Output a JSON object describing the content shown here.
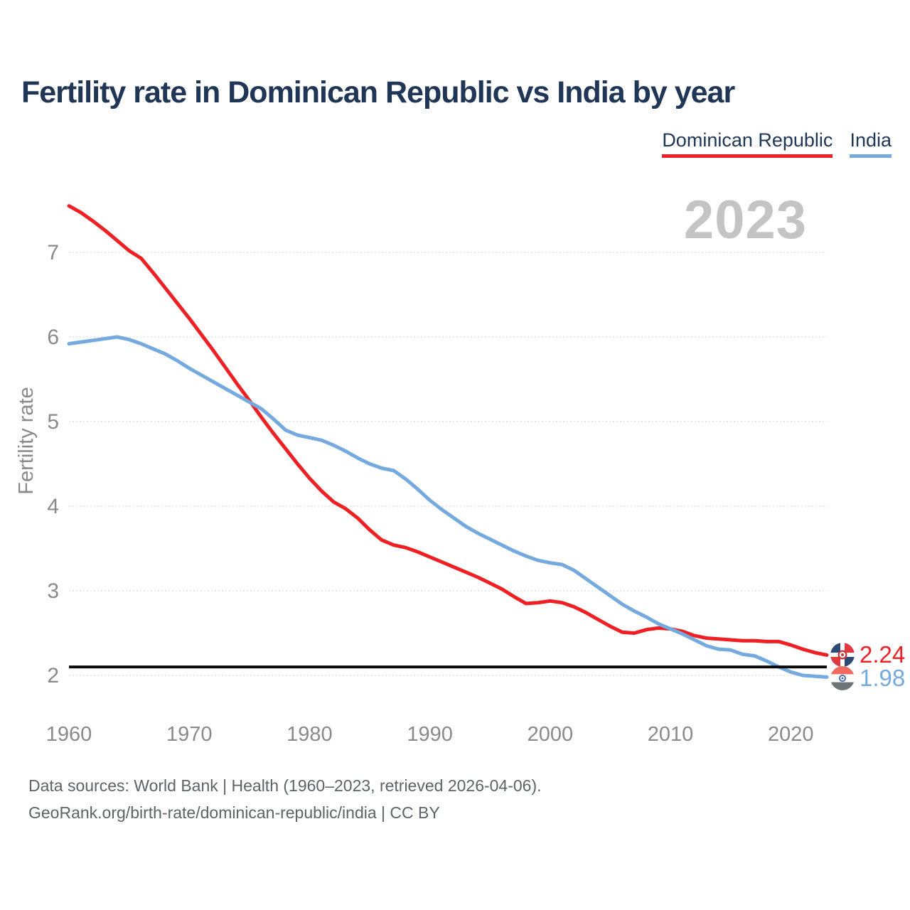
{
  "title": "Fertility rate in Dominican Republic vs India by year",
  "year_badge": "2023",
  "legend": {
    "items": [
      {
        "label": "Dominican Republic",
        "color": "#ef2024"
      },
      {
        "label": "India",
        "color": "#74aadf"
      }
    ]
  },
  "axis": {
    "y_label": "Fertility rate",
    "y_ticks": [
      2,
      3,
      4,
      5,
      6,
      7
    ],
    "x_ticks": [
      1960,
      1970,
      1980,
      1990,
      2000,
      2010,
      2020
    ]
  },
  "reference_line": {
    "value": 2.1
  },
  "end_labels": [
    {
      "series": "Dominican Republic",
      "value": "2.24",
      "icon": "dominican-republic-flag-icon"
    },
    {
      "series": "India",
      "value": "1.98",
      "icon": "india-flag-icon"
    }
  ],
  "footer": {
    "line1": "Data sources: World Bank | Health (1960–2023, retrieved 2026-04-06).",
    "line2": "GeoRank.org/birth-rate/dominican-republic/india | CC BY"
  },
  "colors": {
    "title_navy": "#203657",
    "tick_gray": "#8a8a8a",
    "badge_gray": "#c4c4c4",
    "grid": "#e3e3e3",
    "footer_gray": "#5d6367",
    "reference_black": "#0a0a0a",
    "series_red": "#ef2024",
    "series_blue": "#74aadf"
  },
  "chart_data": {
    "type": "line",
    "title": "Fertility rate in Dominican Republic vs India by year",
    "xlabel": "",
    "ylabel": "Fertility rate",
    "grid": "horizontal-dashed",
    "legend_position": "top-right",
    "xlim": [
      1960,
      2023
    ],
    "ylim": [
      1.8,
      7.8
    ],
    "reference_line": 2.1,
    "years": [
      1960,
      1961,
      1962,
      1963,
      1964,
      1965,
      1966,
      1967,
      1968,
      1969,
      1970,
      1971,
      1972,
      1973,
      1974,
      1975,
      1976,
      1977,
      1978,
      1979,
      1980,
      1981,
      1982,
      1983,
      1984,
      1985,
      1986,
      1987,
      1988,
      1989,
      1990,
      1991,
      1992,
      1993,
      1994,
      1995,
      1996,
      1997,
      1998,
      1999,
      2000,
      2001,
      2002,
      2003,
      2004,
      2005,
      2006,
      2007,
      2008,
      2009,
      2010,
      2011,
      2012,
      2013,
      2014,
      2015,
      2016,
      2017,
      2018,
      2019,
      2020,
      2021,
      2022,
      2023
    ],
    "series": [
      {
        "name": "Dominican Republic",
        "color": "#ef2024",
        "end_value": 2.24,
        "values": [
          7.55,
          7.47,
          7.37,
          7.26,
          7.14,
          7.02,
          6.93,
          6.76,
          6.58,
          6.4,
          6.22,
          6.03,
          5.84,
          5.64,
          5.44,
          5.25,
          5.05,
          4.86,
          4.68,
          4.5,
          4.33,
          4.18,
          4.05,
          3.97,
          3.86,
          3.72,
          3.6,
          3.54,
          3.51,
          3.46,
          3.4,
          3.34,
          3.28,
          3.22,
          3.16,
          3.09,
          3.02,
          2.93,
          2.85,
          2.86,
          2.88,
          2.86,
          2.81,
          2.74,
          2.66,
          2.58,
          2.51,
          2.5,
          2.54,
          2.56,
          2.55,
          2.52,
          2.47,
          2.44,
          2.43,
          2.42,
          2.41,
          2.41,
          2.4,
          2.4,
          2.36,
          2.31,
          2.27,
          2.24
        ]
      },
      {
        "name": "India",
        "color": "#74aadf",
        "end_value": 1.98,
        "values": [
          5.92,
          5.94,
          5.96,
          5.98,
          6.0,
          5.97,
          5.92,
          5.86,
          5.8,
          5.72,
          5.63,
          5.55,
          5.47,
          5.39,
          5.31,
          5.23,
          5.15,
          5.03,
          4.9,
          4.84,
          4.81,
          4.78,
          4.72,
          4.65,
          4.57,
          4.5,
          4.45,
          4.42,
          4.32,
          4.2,
          4.07,
          3.96,
          3.86,
          3.76,
          3.68,
          3.61,
          3.54,
          3.47,
          3.41,
          3.36,
          3.33,
          3.31,
          3.24,
          3.14,
          3.04,
          2.94,
          2.84,
          2.76,
          2.69,
          2.61,
          2.55,
          2.49,
          2.42,
          2.35,
          2.31,
          2.3,
          2.25,
          2.23,
          2.17,
          2.1,
          2.04,
          2.0,
          1.99,
          1.98
        ]
      }
    ]
  }
}
